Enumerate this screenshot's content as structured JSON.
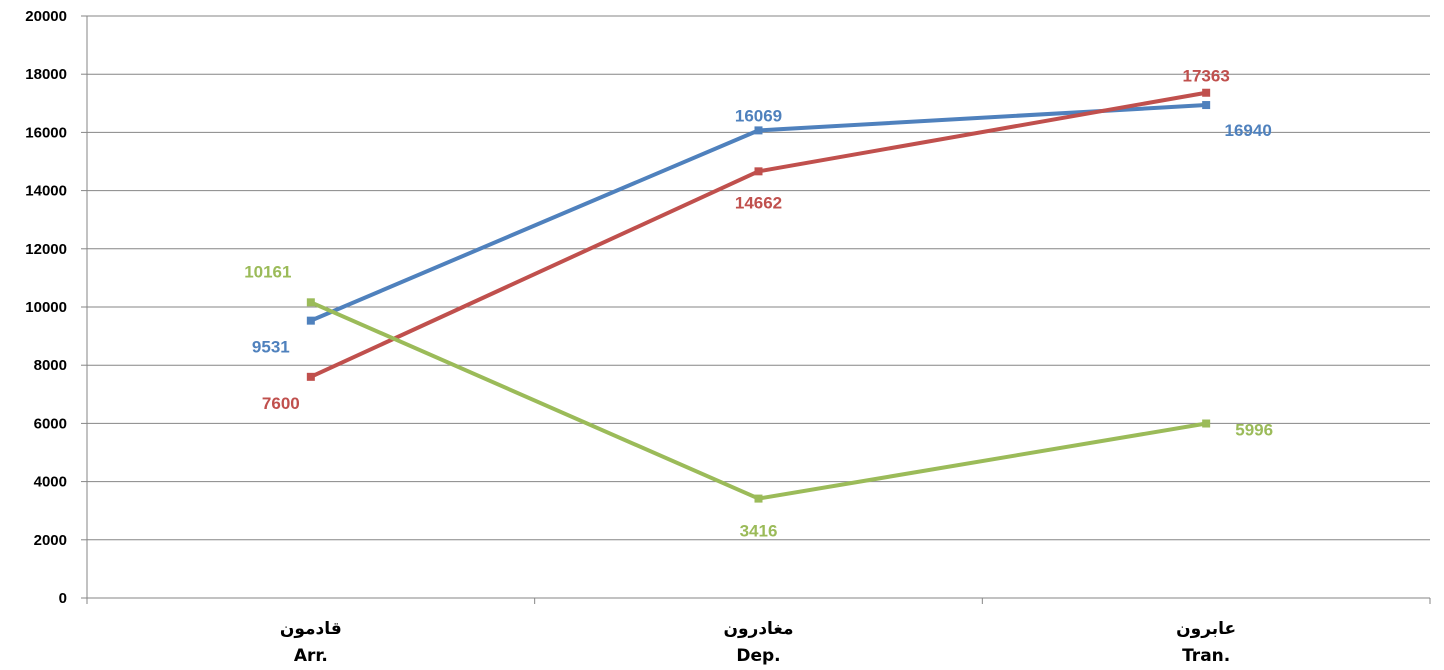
{
  "chart_data": {
    "type": "line",
    "categories": [
      {
        "ar": "قادمون",
        "en": "Arr."
      },
      {
        "ar": "مغادرون",
        "en": "Dep."
      },
      {
        "ar": "عابرون",
        "en": "Tran."
      }
    ],
    "series": [
      {
        "color": "#4F81BD",
        "values": [
          9531,
          16069,
          16940
        ],
        "labels": [
          "9531",
          "16069",
          "16940"
        ]
      },
      {
        "color": "#C0504D",
        "values": [
          7600,
          14662,
          17363
        ],
        "labels": [
          "7600",
          "14662",
          "17363"
        ]
      },
      {
        "color": "#9BBB59",
        "values": [
          10161,
          3416,
          5996
        ],
        "labels": [
          "10161",
          "3416",
          "5996"
        ]
      }
    ],
    "ylim": [
      0,
      20000
    ],
    "yticks": [
      "0",
      "2000",
      "4000",
      "6000",
      "8000",
      "10000",
      "12000",
      "14000",
      "16000",
      "18000",
      "20000"
    ],
    "grid": true,
    "legend": "none"
  }
}
